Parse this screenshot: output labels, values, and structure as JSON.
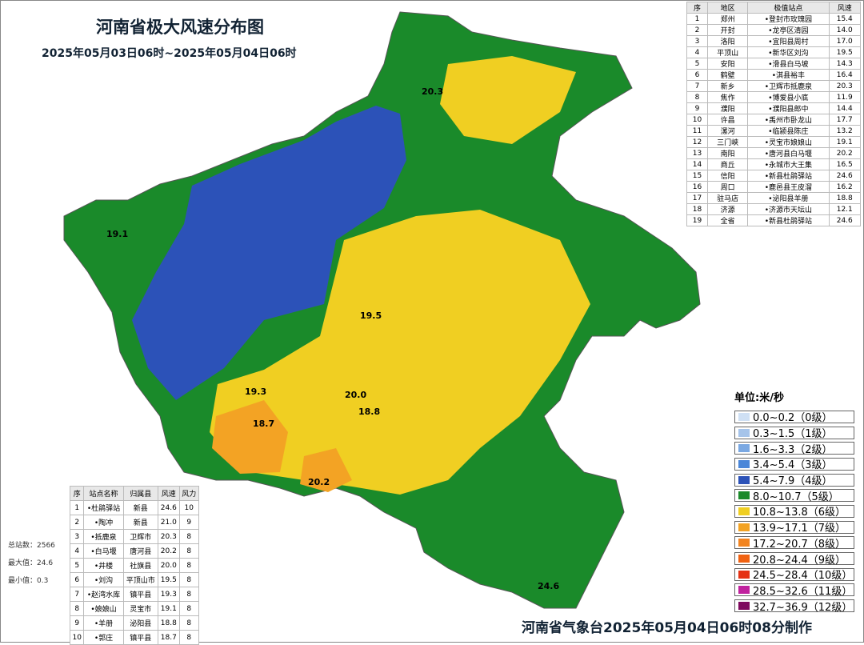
{
  "header": {
    "title": "河南省极大风速分布图",
    "subtitle": "2025年05月03日06时~2025年05月04日06时"
  },
  "city_table": {
    "columns": [
      "序",
      "地区",
      "极值站点",
      "风速"
    ],
    "rows": [
      [
        "1",
        "郑州",
        "•登封市玫瑰园",
        "15.4"
      ],
      [
        "2",
        "开封",
        "•龙亭区清园",
        "14.0"
      ],
      [
        "3",
        "洛阳",
        "•宜阳县周村",
        "17.0"
      ],
      [
        "4",
        "平顶山",
        "•新华区刘沟",
        "19.5"
      ],
      [
        "5",
        "安阳",
        "•滑县白马坡",
        "14.3"
      ],
      [
        "6",
        "鹤壁",
        "•淇县裕丰",
        "16.4"
      ],
      [
        "7",
        "新乡",
        "•卫辉市抵鹿泉",
        "20.3"
      ],
      [
        "8",
        "焦作",
        "•博爱县小底",
        "11.9"
      ],
      [
        "9",
        "濮阳",
        "•濮阳县郎中",
        "14.4"
      ],
      [
        "10",
        "许昌",
        "•禹州市卧龙山",
        "17.7"
      ],
      [
        "11",
        "漯河",
        "•临颍县陈庄",
        "13.2"
      ],
      [
        "12",
        "三门峡",
        "•灵宝市娘娘山",
        "19.1"
      ],
      [
        "13",
        "南阳",
        "•唐河县白马堰",
        "20.2"
      ],
      [
        "14",
        "商丘",
        "•永城市大王集",
        "16.5"
      ],
      [
        "15",
        "信阳",
        "•新县杜鹃驿站",
        "24.6"
      ],
      [
        "16",
        "周口",
        "•鹿邑县王皮溜",
        "16.2"
      ],
      [
        "17",
        "驻马店",
        "•泌阳县羊册",
        "18.8"
      ],
      [
        "18",
        "济源",
        "•济源市天坛山",
        "12.1"
      ],
      [
        "19",
        "全省",
        "•新县杜鹃驿站",
        "24.6"
      ]
    ]
  },
  "station_table": {
    "columns": [
      "序",
      "站点名称",
      "归属县",
      "风速",
      "风力"
    ],
    "rows": [
      [
        "1",
        "•杜鹃驿站",
        "新县",
        "24.6",
        "10"
      ],
      [
        "2",
        "•陶冲",
        "新县",
        "21.0",
        "9"
      ],
      [
        "3",
        "•抵鹿泉",
        "卫辉市",
        "20.3",
        "8"
      ],
      [
        "4",
        "•白马堰",
        "唐河县",
        "20.2",
        "8"
      ],
      [
        "5",
        "•井楼",
        "社旗县",
        "20.0",
        "8"
      ],
      [
        "6",
        "•刘沟",
        "平顶山市",
        "19.5",
        "8"
      ],
      [
        "7",
        "•赵湾水库",
        "镇平县",
        "19.3",
        "8"
      ],
      [
        "8",
        "•娘娘山",
        "灵宝市",
        "19.1",
        "8"
      ],
      [
        "9",
        "•羊册",
        "泌阳县",
        "18.8",
        "8"
      ],
      [
        "10",
        "•郭庄",
        "镇平县",
        "18.7",
        "8"
      ]
    ]
  },
  "stats": [
    "总站数：2566",
    "最大值：24.6",
    "最小值：0.3"
  ],
  "legend": {
    "title": "单位:米/秒",
    "items": [
      {
        "label": "0.0~0.2（0级）",
        "color": "#cfe0f4"
      },
      {
        "label": "0.3~1.5（1级）",
        "color": "#a6c4ea"
      },
      {
        "label": "1.6~3.3（2级）",
        "color": "#7aa8e2"
      },
      {
        "label": "3.4~5.4（3级）",
        "color": "#4a86d8"
      },
      {
        "label": "5.4~7.9（4级）",
        "color": "#2c52b8"
      },
      {
        "label": "8.0~10.7（5级）",
        "color": "#1a8a2a"
      },
      {
        "label": "10.8~13.8（6级）",
        "color": "#f0cf22"
      },
      {
        "label": "13.9~17.1（7级）",
        "color": "#f3a324"
      },
      {
        "label": "17.2~20.7（8级）",
        "color": "#f28420"
      },
      {
        "label": "20.8~24.4（9级）",
        "color": "#f06212"
      },
      {
        "label": "24.5~28.4（10级）",
        "color": "#e53214"
      },
      {
        "label": "28.5~32.6（11级）",
        "color": "#c0229e"
      },
      {
        "label": "32.7~36.9（12级）",
        "color": "#7e0a5e"
      }
    ]
  },
  "map_labels": [
    "19.1",
    "20.3",
    "19.5",
    "19.3",
    "20.0",
    "18.8",
    "18.7",
    "20.2",
    "24.6"
  ],
  "footer": "河南省气象台2025年05月04日06时08分制作"
}
